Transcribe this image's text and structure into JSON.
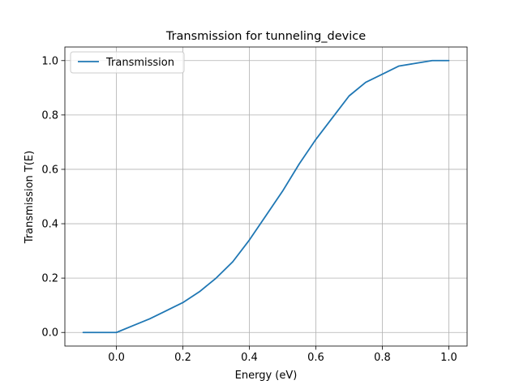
{
  "chart_data": {
    "type": "line",
    "title": "Transmission for tunneling_device",
    "xlabel": "Energy (eV)",
    "ylabel": "Transmission T(E)",
    "xlim": [
      -0.1,
      1.0
    ],
    "ylim": [
      0.0,
      1.0
    ],
    "xticks": [
      0.0,
      0.2,
      0.4,
      0.6,
      0.8,
      1.0
    ],
    "xtick_labels": [
      "0.0",
      "0.2",
      "0.4",
      "0.6",
      "0.8",
      "1.0"
    ],
    "yticks": [
      0.0,
      0.2,
      0.4,
      0.6,
      0.8,
      1.0
    ],
    "ytick_labels": [
      "0.0",
      "0.2",
      "0.4",
      "0.6",
      "0.8",
      "1.0"
    ],
    "grid": true,
    "legend_position": "upper left",
    "series": [
      {
        "name": "Transmission",
        "color": "#1f77b4",
        "x": [
          -0.1,
          -0.05,
          0.0,
          0.05,
          0.1,
          0.15,
          0.2,
          0.25,
          0.3,
          0.35,
          0.4,
          0.45,
          0.5,
          0.55,
          0.6,
          0.65,
          0.7,
          0.75,
          0.8,
          0.85,
          0.9,
          0.95,
          1.0
        ],
        "y": [
          0.0,
          0.0,
          0.0,
          0.025,
          0.05,
          0.08,
          0.11,
          0.15,
          0.2,
          0.26,
          0.34,
          0.43,
          0.52,
          0.62,
          0.71,
          0.79,
          0.87,
          0.92,
          0.95,
          0.98,
          0.99,
          1.0,
          1.0
        ]
      }
    ]
  }
}
